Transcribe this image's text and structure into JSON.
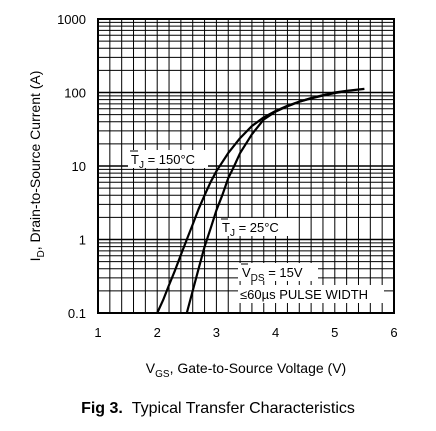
{
  "chart_data": {
    "type": "line",
    "x_scale": "linear",
    "y_scale": "log",
    "xlim": [
      1,
      6
    ],
    "ylim": [
      0.1,
      1000
    ],
    "x_ticks": [
      "1",
      "2",
      "3",
      "4",
      "5",
      "6"
    ],
    "y_ticks": [
      "0.1",
      "1",
      "10",
      "100",
      "1000"
    ],
    "grid": true,
    "xlabel": {
      "main": "V",
      "sub": "GS",
      "rest": ", Gate-to-Source Voltage (V)"
    },
    "ylabel": {
      "main": "I",
      "sub": "D",
      "rest": ", Drain-to-Source Current (A)"
    },
    "series": [
      {
        "name": "TJ = 150°C",
        "x": [
          2.0,
          2.1,
          2.2,
          2.3,
          2.4,
          2.5,
          2.6,
          2.7,
          2.8,
          2.9,
          3.0,
          3.2,
          3.4,
          3.6,
          3.8,
          4.0,
          4.2,
          4.4,
          4.6,
          4.8,
          5.0,
          5.1
        ],
        "y": [
          0.1,
          0.15,
          0.24,
          0.38,
          0.62,
          1.0,
          1.6,
          2.6,
          4.0,
          6.0,
          8.5,
          15,
          24,
          35,
          46,
          56,
          66,
          75,
          83,
          91,
          98,
          101
        ]
      },
      {
        "name": "TJ = 25°C",
        "x": [
          2.5,
          2.6,
          2.7,
          2.8,
          2.9,
          3.0,
          3.1,
          3.2,
          3.3,
          3.4,
          3.6,
          3.8,
          4.0,
          4.2,
          4.4,
          4.6,
          4.8,
          5.0,
          5.2,
          5.5
        ],
        "y": [
          0.1,
          0.2,
          0.4,
          0.8,
          1.4,
          2.5,
          4.0,
          6.8,
          10,
          15,
          27,
          43,
          55,
          65,
          75,
          84,
          92,
          100,
          105,
          112
        ]
      }
    ],
    "annotations": {
      "tj150": {
        "prefix": "T",
        "sub": "J",
        "rest": " = 150°C"
      },
      "tj25": {
        "prefix": "T",
        "sub": "J",
        "rest": " = 25°C"
      },
      "vds": {
        "prefix": "V",
        "sub": "DS",
        "rest": " = 15V"
      },
      "pulse": "≤60µs PULSE WIDTH"
    }
  },
  "caption": {
    "fig": "Fig 3.",
    "title": "Typical Transfer Characteristics"
  }
}
